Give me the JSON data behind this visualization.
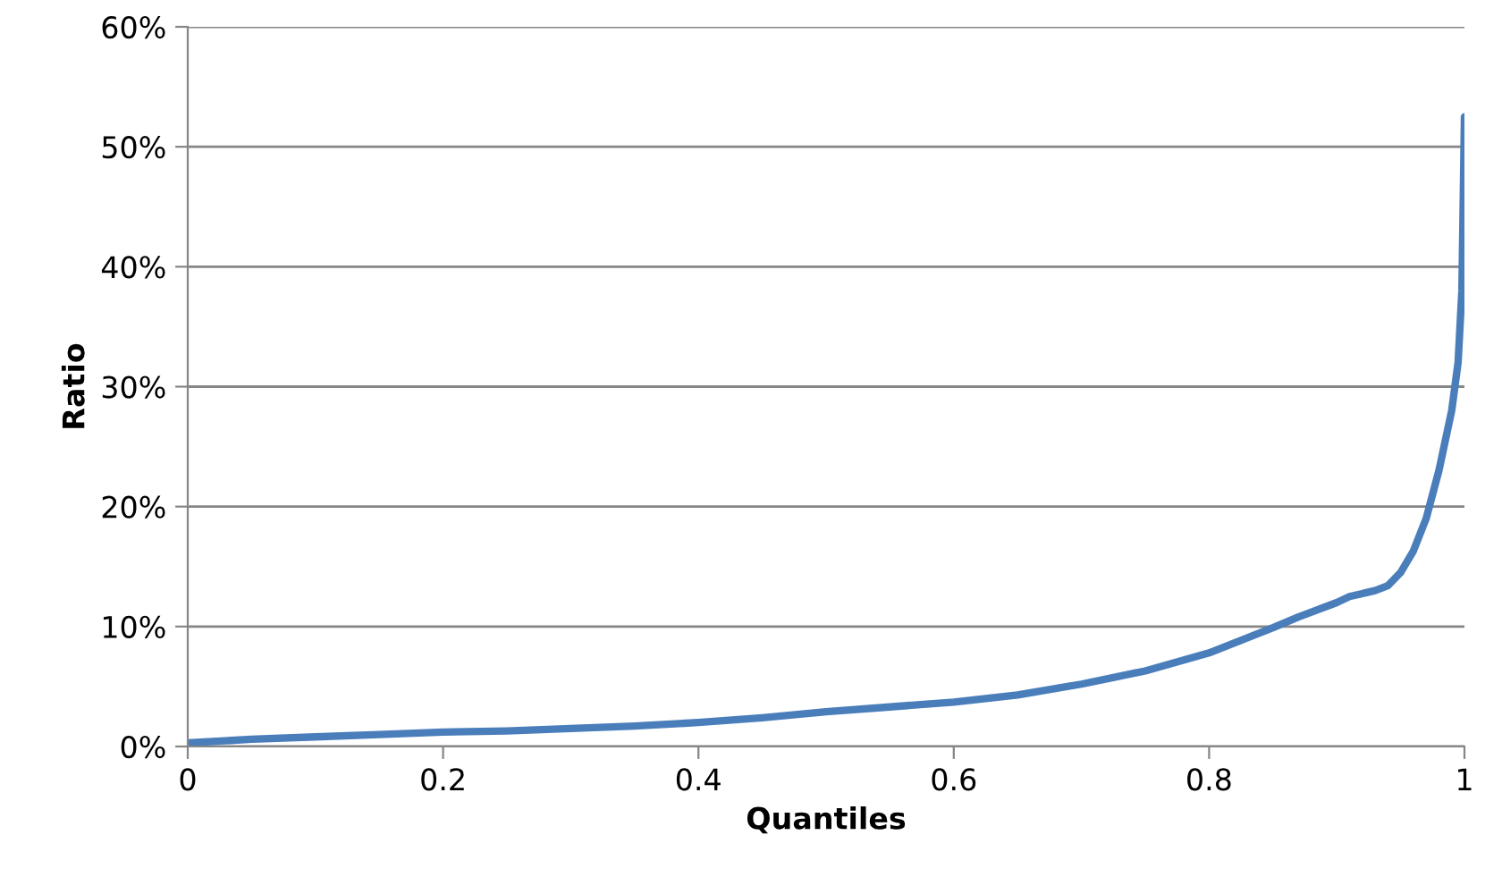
{
  "chart_data": {
    "type": "line",
    "xlabel": "Quantiles",
    "ylabel": "Ratio",
    "x": [
      0,
      0.05,
      0.1,
      0.15,
      0.2,
      0.25,
      0.3,
      0.35,
      0.4,
      0.45,
      0.5,
      0.55,
      0.6,
      0.65,
      0.7,
      0.75,
      0.8,
      0.85,
      0.87,
      0.9,
      0.91,
      0.93,
      0.94,
      0.95,
      0.96,
      0.97,
      0.98,
      0.99,
      0.995,
      0.998,
      1.0
    ],
    "series": [
      {
        "color": "#4a7ebb",
        "values": [
          0.3,
          0.6,
          0.8,
          1.0,
          1.2,
          1.3,
          1.5,
          1.7,
          2.0,
          2.4,
          2.9,
          3.3,
          3.7,
          4.3,
          5.2,
          6.3,
          7.8,
          9.9,
          10.8,
          12.0,
          12.5,
          13.0,
          13.4,
          14.5,
          16.3,
          19.0,
          23.0,
          28.0,
          32.0,
          38.0,
          52.5
        ]
      }
    ],
    "xlim": [
      0,
      1
    ],
    "ylim": [
      0,
      60
    ],
    "xticks": [
      0,
      0.2,
      0.4,
      0.6,
      0.8,
      1
    ],
    "yticks": [
      {
        "value": 0,
        "label": "0%"
      },
      {
        "value": 10,
        "label": "10%"
      },
      {
        "value": 20,
        "label": "20%"
      },
      {
        "value": 30,
        "label": "30%"
      },
      {
        "value": 40,
        "label": "40%"
      },
      {
        "value": 50,
        "label": "50%"
      },
      {
        "value": 60,
        "label": "60%"
      }
    ],
    "grid": "y",
    "legend": false,
    "marker": "none",
    "line_style": "solid"
  }
}
